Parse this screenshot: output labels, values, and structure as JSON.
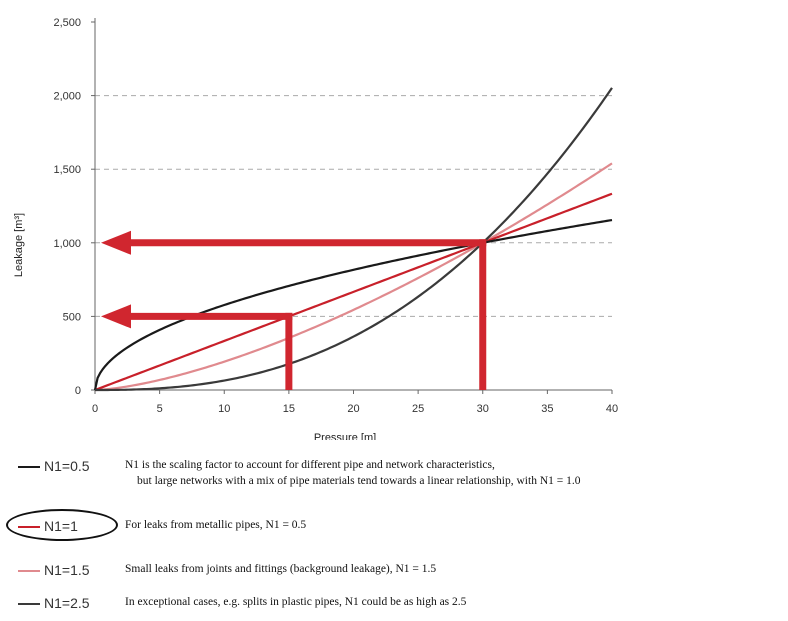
{
  "chart_data": {
    "type": "line",
    "xlabel": "Pressure [m]",
    "ylabel": "Leakage [m³]",
    "xlim": [
      0,
      40
    ],
    "ylim": [
      0,
      2500
    ],
    "x_ticks": [
      0,
      5,
      10,
      15,
      20,
      25,
      30,
      35,
      40
    ],
    "y_ticks": [
      0,
      500,
      1000,
      1500,
      2000,
      2500
    ],
    "x_tick_labels": [
      "0",
      "5",
      "10",
      "15",
      "20",
      "25",
      "30",
      "35",
      "40"
    ],
    "y_tick_labels": [
      "0",
      "500",
      "1,000",
      "1,500",
      "2,000",
      "2,500"
    ],
    "grid": "horizontal dashed",
    "reference_point": {
      "x": 30,
      "y": 1000
    },
    "series": [
      {
        "name": "N1=0.5",
        "exponent": 0.5,
        "color": "#1a1a1a",
        "x": [
          0,
          5,
          10,
          15,
          20,
          25,
          30,
          35,
          40
        ],
        "values": [
          0,
          408,
          577,
          707,
          816,
          913,
          1000,
          1080,
          1155
        ]
      },
      {
        "name": "N1=1",
        "exponent": 1,
        "color": "#c8202a",
        "x": [
          0,
          5,
          10,
          15,
          20,
          25,
          30,
          35,
          40
        ],
        "values": [
          0,
          167,
          333,
          500,
          667,
          833,
          1000,
          1167,
          1333
        ]
      },
      {
        "name": "N1=1.5",
        "exponent": 1.5,
        "color": "#e08a8e",
        "x": [
          0,
          5,
          10,
          15,
          20,
          25,
          30,
          35,
          40
        ],
        "values": [
          0,
          68,
          192,
          354,
          544,
          761,
          1000,
          1260,
          1540
        ]
      },
      {
        "name": "N1=2.5",
        "exponent": 2.5,
        "color": "#3a3a3a",
        "x": [
          0,
          5,
          10,
          15,
          20,
          25,
          30,
          35,
          40
        ],
        "values": [
          0,
          11,
          64,
          177,
          363,
          634,
          1000,
          1470,
          2053
        ]
      }
    ],
    "annotations": [
      {
        "type": "arrow",
        "from": {
          "x": 30,
          "y": 0
        },
        "corner": {
          "x": 30,
          "y": 1000
        },
        "to": {
          "x": 0,
          "y": 1000
        },
        "color": "#d0262f"
      },
      {
        "type": "arrow",
        "from": {
          "x": 15,
          "y": 0
        },
        "corner": {
          "x": 15,
          "y": 500
        },
        "to": {
          "x": 0,
          "y": 500
        },
        "color": "#d0262f"
      }
    ]
  },
  "legend": [
    {
      "name": "N1=0.5",
      "color": "#1a1a1a",
      "text": "N1 is the scaling factor to account for different pipe and network characteristics,",
      "text2": "but large networks with a mix of pipe materials tend towards a linear relationship, with N1 = 1.0"
    },
    {
      "name": "N1=1",
      "color": "#c8202a",
      "text": "For leaks from metallic pipes, N1 = 0.5",
      "circled": true
    },
    {
      "name": "N1=1.5",
      "color": "#e08a8e",
      "text": "Small leaks from joints and fittings (background leakage), N1 = 1.5"
    },
    {
      "name": "N1=2.5",
      "color": "#3a3a3a",
      "text": "In exceptional cases, e.g. splits in plastic pipes, N1 could be as high as 2.5"
    }
  ]
}
